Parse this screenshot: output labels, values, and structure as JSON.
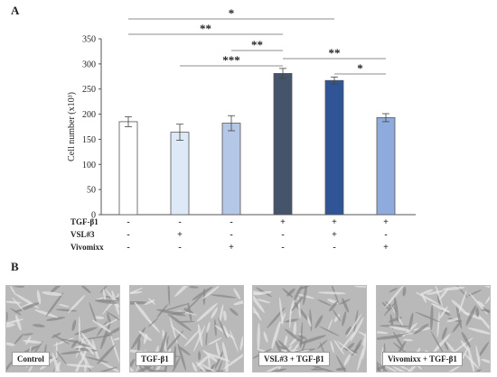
{
  "panel_labels": {
    "a": "A",
    "b": "B"
  },
  "chart_data": {
    "type": "bar",
    "ylabel": "Cell number (x10³)",
    "ylim": [
      0,
      350
    ],
    "yticks": [
      0,
      50,
      100,
      150,
      200,
      250,
      300,
      350
    ],
    "grid": false,
    "values": [
      185,
      164,
      182,
      281,
      267,
      193
    ],
    "errors": [
      10,
      16,
      15,
      10,
      7,
      8
    ],
    "colors": [
      "#ffffff",
      "#dde9f6",
      "#b4c7e7",
      "#44546a",
      "#2f5597",
      "#8faadc"
    ],
    "treatments": [
      {
        "name": "TGF-β1",
        "signs": [
          "-",
          "-",
          "-",
          "+",
          "+",
          "+"
        ]
      },
      {
        "name": "VSL#3",
        "signs": [
          "-",
          "+",
          "-",
          "-",
          "+",
          "-"
        ]
      },
      {
        "name": "Vivomixx",
        "signs": [
          "-",
          "-",
          "+",
          "-",
          "-",
          "+"
        ]
      }
    ],
    "significance": [
      {
        "from": 0,
        "to": 4,
        "label": "*"
      },
      {
        "from": 0,
        "to": 3,
        "label": "**"
      },
      {
        "from": 2,
        "to": 3,
        "label": "**"
      },
      {
        "from": 1,
        "to": 3,
        "label": "***"
      },
      {
        "from": 3,
        "to": 5,
        "label": "**"
      },
      {
        "from": 4,
        "to": 5,
        "label": "*"
      }
    ]
  },
  "micrographs": [
    {
      "caption": "Control",
      "seed": 3
    },
    {
      "caption": "TGF-β1",
      "seed": 11
    },
    {
      "caption": "VSL#3 + TGF-β1",
      "seed": 23
    },
    {
      "caption": "Vivomixx + TGF-β1",
      "seed": 37
    }
  ]
}
